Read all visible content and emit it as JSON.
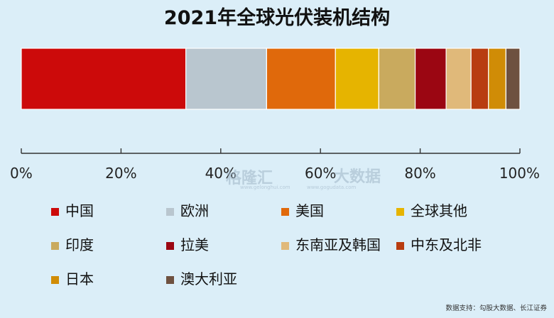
{
  "chart_data": {
    "type": "bar",
    "orientation": "horizontal-stacked",
    "title": "2021年全球光伏装机结构",
    "series": [
      {
        "name": "中国",
        "value": 33.0,
        "color": "#cc0a0a"
      },
      {
        "name": "欧洲",
        "value": 16.2,
        "color": "#b9c6cf"
      },
      {
        "name": "美国",
        "value": 13.8,
        "color": "#e0690b"
      },
      {
        "name": "全球其他",
        "value": 8.7,
        "color": "#e6b400"
      },
      {
        "name": "印度",
        "value": 7.3,
        "color": "#c9aa5e"
      },
      {
        "name": "拉美",
        "value": 6.2,
        "color": "#9b0612"
      },
      {
        "name": "东南亚及韩国",
        "value": 5.0,
        "color": "#e0b97a"
      },
      {
        "name": "中东及北非",
        "value": 3.5,
        "color": "#b83c10"
      },
      {
        "name": "日本",
        "value": 3.5,
        "color": "#d08c06"
      },
      {
        "name": "澳大利亚",
        "value": 2.8,
        "color": "#6e5140"
      }
    ],
    "xlim": [
      0,
      100
    ],
    "xticks": [
      "0%",
      "20%",
      "40%",
      "60%",
      "80%",
      "100%"
    ],
    "grid": false,
    "legend": "bottom"
  },
  "watermark": {
    "brand": "格隆汇",
    "brand_url": "www.gelonghui.com",
    "site": "大数据",
    "site_url": "www.gogudata.com"
  },
  "source": "数据支持：勾股大数据、长江证券"
}
